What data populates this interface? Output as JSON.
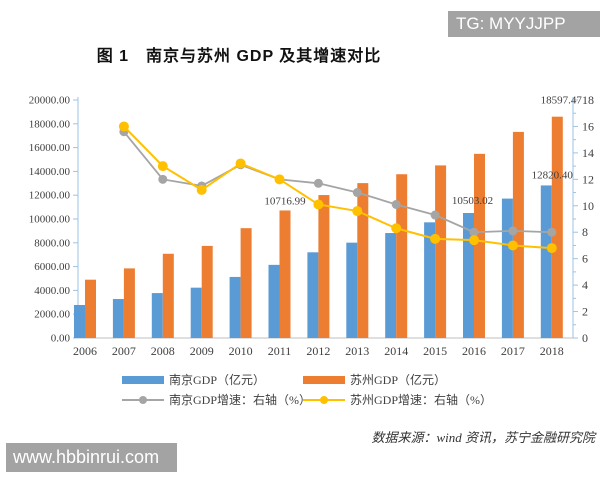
{
  "window": {
    "watermark_top": "TG: MYYJJPP",
    "watermark_bottom": "www.hbbinrui.com"
  },
  "title": "图 1　南京与苏州 GDP 及其增速对比",
  "source_note": "数据来源：wind 资讯，苏宁金融研究院",
  "colors": {
    "nanjing_bar": "#5B9BD5",
    "suzhou_bar": "#ED7D31",
    "nanjing_line": "#A5A5A5",
    "suzhou_line": "#FFC000",
    "axis_line": "#9DC3E6",
    "x_axis_line": "#BFBFBF",
    "text": "#3f3f3f",
    "watermark_bg": "#a3a3a3"
  },
  "chart_data": {
    "type": "bar+line combo",
    "title": "图 1　南京与苏州 GDP 及其增速对比",
    "categories": [
      2006,
      2007,
      2008,
      2009,
      2010,
      2011,
      2012,
      2013,
      2014,
      2015,
      2016,
      2017,
      2018
    ],
    "series": [
      {
        "name": "南京GDP（亿元）",
        "type": "bar",
        "axis": "left",
        "color": "#5B9BD5",
        "values": [
          2774,
          3275,
          3775,
          4230,
          5131,
          6146,
          7202,
          8012,
          8821,
          9721,
          10503.02,
          11715,
          12820.4
        ]
      },
      {
        "name": "苏州GDP（亿元）",
        "type": "bar",
        "axis": "left",
        "color": "#ED7D31",
        "values": [
          4900,
          5850,
          7078,
          7740,
          9229,
          10716.99,
          12012,
          13016,
          13761,
          14504,
          15475,
          17320,
          18597.47
        ]
      },
      {
        "name": "南京GDP增速：右轴（%）",
        "type": "line",
        "axis": "right",
        "color": "#A5A5A5",
        "values": [
          null,
          15.6,
          12.0,
          11.5,
          13.1,
          12.0,
          11.7,
          11.0,
          10.1,
          9.3,
          8.0,
          8.1,
          8.0
        ]
      },
      {
        "name": "苏州GDP增速：右轴（%）",
        "type": "line",
        "axis": "right",
        "color": "#FFC000",
        "values": [
          null,
          16.0,
          13.0,
          11.2,
          13.2,
          12.0,
          10.1,
          9.6,
          8.3,
          7.5,
          7.4,
          7.0,
          6.8
        ]
      }
    ],
    "data_labels": [
      {
        "text": "10716.99",
        "series_index": 1,
        "cat_index": 5
      },
      {
        "text": "10503.02",
        "series_index": 0,
        "cat_index": 10
      },
      {
        "text": "12820.40",
        "series_index": 0,
        "cat_index": 12
      },
      {
        "text": "18597.47",
        "series_index": 1,
        "cat_index": 12
      }
    ],
    "left_axis": {
      "min": 0,
      "max": 20000,
      "step": 2000,
      "decimals": 2
    },
    "right_axis": {
      "min": 0,
      "max": 18,
      "step": 2,
      "minor_step": 1
    },
    "grid": false,
    "legend_position": "bottom"
  }
}
